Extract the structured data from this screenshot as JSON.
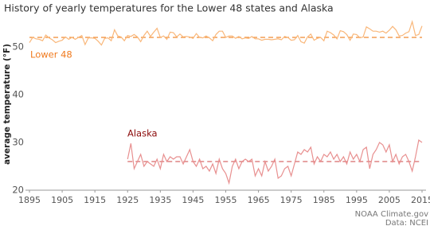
{
  "chart_data": {
    "type": "line",
    "title": "History of yearly temperatures for the Lower 48 states and Alaska",
    "y_label": "average temperature (°F)",
    "source": [
      "NOAA Climate.gov",
      "Data: NCEI"
    ],
    "xlim": [
      1895,
      2015
    ],
    "xticks": [
      1895,
      1905,
      1915,
      1925,
      1935,
      1945,
      1955,
      1965,
      1975,
      1985,
      1995,
      2005,
      2015
    ],
    "ylim": [
      20,
      56
    ],
    "yticks": [
      20,
      30,
      40,
      50
    ],
    "series": [
      {
        "name": "Lower 48",
        "color": "#f9b77a",
        "label_color": "#f07a1e",
        "average_color": "#f08a30",
        "average": 52.0,
        "x": [
          1895,
          1896,
          1897,
          1898,
          1899,
          1900,
          1901,
          1902,
          1903,
          1904,
          1905,
          1906,
          1907,
          1908,
          1909,
          1910,
          1911,
          1912,
          1913,
          1914,
          1915,
          1916,
          1917,
          1918,
          1919,
          1920,
          1921,
          1922,
          1923,
          1924,
          1925,
          1926,
          1927,
          1928,
          1929,
          1930,
          1931,
          1932,
          1933,
          1934,
          1935,
          1936,
          1937,
          1938,
          1939,
          1940,
          1941,
          1942,
          1943,
          1944,
          1945,
          1946,
          1947,
          1948,
          1949,
          1950,
          1951,
          1952,
          1953,
          1954,
          1955,
          1956,
          1957,
          1958,
          1959,
          1960,
          1961,
          1962,
          1963,
          1964,
          1965,
          1966,
          1967,
          1968,
          1969,
          1970,
          1971,
          1972,
          1973,
          1974,
          1975,
          1976,
          1977,
          1978,
          1979,
          1980,
          1981,
          1982,
          1983,
          1984,
          1985,
          1986,
          1987,
          1988,
          1989,
          1990,
          1991,
          1992,
          1993,
          1994,
          1995,
          1996,
          1997,
          1998,
          1999,
          2000,
          2001,
          2002,
          2003,
          2004,
          2005,
          2006,
          2007,
          2008,
          2009,
          2010,
          2011,
          2012,
          2013,
          2014,
          2015
        ],
        "values": [
          50.9,
          52.0,
          51.7,
          51.6,
          51.3,
          52.5,
          51.9,
          51.5,
          50.9,
          51.2,
          51.4,
          52.1,
          51.6,
          52.0,
          51.6,
          52.0,
          52.4,
          50.5,
          51.9,
          51.9,
          51.8,
          51.2,
          50.4,
          51.8,
          51.9,
          51.3,
          53.6,
          52.3,
          52.1,
          51.3,
          52.4,
          52.2,
          52.6,
          52.1,
          51.1,
          52.4,
          53.3,
          52.2,
          53.1,
          53.9,
          52.0,
          52.3,
          51.6,
          53.1,
          53.0,
          52.1,
          52.7,
          52.1,
          52.2,
          52.1,
          51.8,
          52.8,
          52.0,
          51.9,
          52.3,
          51.9,
          51.3,
          52.6,
          53.3,
          53.3,
          52.0,
          52.3,
          52.3,
          51.8,
          52.2,
          51.7,
          51.9,
          51.8,
          52.2,
          51.7,
          51.7,
          51.4,
          51.6,
          51.6,
          51.5,
          51.6,
          51.7,
          51.5,
          52.2,
          52.0,
          51.4,
          51.5,
          52.4,
          51.1,
          50.8,
          52.1,
          52.7,
          51.4,
          51.8,
          52.0,
          51.3,
          53.3,
          53.0,
          52.5,
          51.7,
          53.4,
          53.2,
          52.6,
          51.4,
          52.7,
          52.6,
          51.9,
          52.1,
          54.2,
          53.8,
          53.3,
          53.3,
          53.1,
          53.3,
          52.9,
          53.5,
          54.3,
          53.6,
          52.3,
          52.4,
          52.9,
          53.2,
          55.3,
          52.4,
          52.6,
          54.4
        ]
      },
      {
        "name": "Alaska",
        "color": "#e89090",
        "label_color": "#8b0a0a",
        "average_color": "#d86a6a",
        "average": 26.0,
        "x": [
          1925,
          1926,
          1927,
          1928,
          1929,
          1930,
          1931,
          1932,
          1933,
          1934,
          1935,
          1936,
          1937,
          1938,
          1939,
          1940,
          1941,
          1942,
          1943,
          1944,
          1945,
          1946,
          1947,
          1948,
          1949,
          1950,
          1951,
          1952,
          1953,
          1954,
          1955,
          1956,
          1957,
          1958,
          1959,
          1960,
          1961,
          1962,
          1963,
          1964,
          1965,
          1966,
          1967,
          1968,
          1969,
          1970,
          1971,
          1972,
          1973,
          1974,
          1975,
          1976,
          1977,
          1978,
          1979,
          1980,
          1981,
          1982,
          1983,
          1984,
          1985,
          1986,
          1987,
          1988,
          1989,
          1990,
          1991,
          1992,
          1993,
          1994,
          1995,
          1996,
          1997,
          1998,
          1999,
          2000,
          2001,
          2002,
          2003,
          2004,
          2005,
          2006,
          2007,
          2008,
          2009,
          2010,
          2011,
          2012,
          2013,
          2014,
          2015
        ],
        "values": [
          26.5,
          29.8,
          24.5,
          26.0,
          27.5,
          25.0,
          26.0,
          25.5,
          25.0,
          26.5,
          24.5,
          27.5,
          26.0,
          27.0,
          26.5,
          27.0,
          27.0,
          25.5,
          27.0,
          28.5,
          26.0,
          25.0,
          26.5,
          24.5,
          25.0,
          24.0,
          25.5,
          23.5,
          26.5,
          24.5,
          23.5,
          21.5,
          25.0,
          26.5,
          24.5,
          26.0,
          26.5,
          26.0,
          26.5,
          23.0,
          24.5,
          23.0,
          26.0,
          24.0,
          25.0,
          26.5,
          22.5,
          23.0,
          24.5,
          25.0,
          23.0,
          25.5,
          28.0,
          27.5,
          28.5,
          28.0,
          29.0,
          25.5,
          27.0,
          26.0,
          27.5,
          27.0,
          28.0,
          26.5,
          27.5,
          26.0,
          27.0,
          25.5,
          28.0,
          26.5,
          27.5,
          26.0,
          28.5,
          29.0,
          24.5,
          27.5,
          28.5,
          30.0,
          29.5,
          28.0,
          29.5,
          26.0,
          27.5,
          25.5,
          27.0,
          27.5,
          26.0,
          24.0,
          27.0,
          30.5,
          30.0
        ]
      }
    ]
  }
}
